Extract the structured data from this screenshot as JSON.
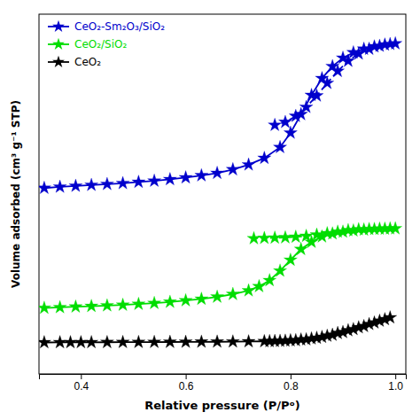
{
  "chart_data": {
    "type": "line",
    "xlabel": "Relative pressure (P/Pᵒ)",
    "ylabel": "Volume adsorbed (cm³ g⁻¹ STP)",
    "xlim": [
      0.32,
      1.02
    ],
    "xticks": [
      0.4,
      0.6,
      0.8,
      {
        "value": 1.0,
        "label": "1.0"
      }
    ],
    "ylim": [
      -50,
      550
    ],
    "tick_labels": "x",
    "grid": false,
    "legend": "upper left",
    "series": [
      {
        "name": "CeO₂",
        "color": "#000000",
        "line_style": "solid",
        "marker": "star",
        "x": [
          0.33,
          0.36,
          0.38,
          0.4,
          0.42,
          0.45,
          0.48,
          0.51,
          0.54,
          0.57,
          0.6,
          0.63,
          0.66,
          0.69,
          0.72,
          0.75,
          0.77,
          0.79,
          0.81,
          0.83,
          0.85,
          0.87,
          0.89,
          0.91,
          0.93,
          0.95,
          0.97,
          0.99
        ],
        "values": [
          2.5,
          2.6,
          2.6,
          2.7,
          2.7,
          2.8,
          2.9,
          3.0,
          3.1,
          3.2,
          3.3,
          3.5,
          3.6,
          3.8,
          4.0,
          4.3,
          4.7,
          5.2,
          6.0,
          7.5,
          10.0,
          13.5,
          18.0,
          22.5,
          27.5,
          33.0,
          38.5,
          44.0
        ]
      },
      {
        "color": "#000000",
        "line_style": "dashed",
        "marker": "star",
        "x": [
          0.98,
          0.96,
          0.94,
          0.92,
          0.9,
          0.88,
          0.86,
          0.84,
          0.82,
          0.8,
          0.78,
          0.76
        ],
        "values": [
          41.0,
          35.5,
          29.5,
          24.5,
          19.5,
          15.0,
          11.5,
          9.0,
          7.2,
          5.8,
          5.0,
          4.5
        ]
      },
      {
        "name": "CeO₂/SiO₂",
        "color": "#00dd00",
        "line_style": "solid",
        "marker": "star",
        "x": [
          0.33,
          0.36,
          0.39,
          0.42,
          0.45,
          0.48,
          0.51,
          0.54,
          0.57,
          0.6,
          0.63,
          0.66,
          0.69,
          0.72,
          0.74,
          0.76,
          0.78,
          0.8,
          0.82,
          0.84,
          0.86,
          0.88,
          0.9,
          0.92,
          0.94,
          0.96,
          0.98,
          1.0
        ],
        "values": [
          60.0,
          61.0,
          62.0,
          63.0,
          64.0,
          65.0,
          66.5,
          68.0,
          70.0,
          72.5,
          75.0,
          78.5,
          83.0,
          89.0,
          96.0,
          106.0,
          122.0,
          140.0,
          158.0,
          170.0,
          179.0,
          184.0,
          187.0,
          189.0,
          190.5,
          191.5,
          192.0,
          192.5
        ]
      },
      {
        "color": "#00dd00",
        "line_style": "dashed",
        "marker": "star",
        "x": [
          0.99,
          0.97,
          0.95,
          0.93,
          0.91,
          0.89,
          0.87,
          0.85,
          0.83,
          0.81,
          0.79,
          0.77,
          0.75,
          0.73
        ],
        "values": [
          192.5,
          192.0,
          191.5,
          191.0,
          189.5,
          187.0,
          184.5,
          182.0,
          180.0,
          178.5,
          177.5,
          177.0,
          176.5,
          176.0
        ]
      },
      {
        "name": "CeO₂-Sm₂O₃/SiO₂",
        "color": "#0000CC",
        "line_style": "solid",
        "marker": "star",
        "x": [
          0.33,
          0.36,
          0.39,
          0.42,
          0.45,
          0.48,
          0.51,
          0.54,
          0.57,
          0.6,
          0.63,
          0.66,
          0.69,
          0.72,
          0.75,
          0.78,
          0.8,
          0.82,
          0.84,
          0.86,
          0.88,
          0.9,
          0.92,
          0.94,
          0.96,
          0.98,
          1.0
        ],
        "values": [
          260.0,
          262.0,
          263.5,
          265.0,
          266.5,
          268.0,
          270.0,
          272.0,
          274.5,
          277.5,
          281.0,
          285.0,
          291.0,
          299.0,
          310.0,
          328.0,
          352.0,
          383.0,
          415.0,
          443.0,
          463.0,
          477.0,
          486.0,
          492.0,
          496.0,
          499.0,
          501.0
        ]
      },
      {
        "color": "#0000CC",
        "line_style": "dashed",
        "marker": "star",
        "x": [
          0.99,
          0.97,
          0.95,
          0.93,
          0.91,
          0.89,
          0.87,
          0.85,
          0.83,
          0.81,
          0.79,
          0.77
        ],
        "values": [
          500.0,
          497.0,
          492.0,
          484.0,
          472.0,
          455.0,
          435.0,
          414.0,
          395.0,
          380.0,
          370.0,
          365.0
        ]
      }
    ]
  }
}
